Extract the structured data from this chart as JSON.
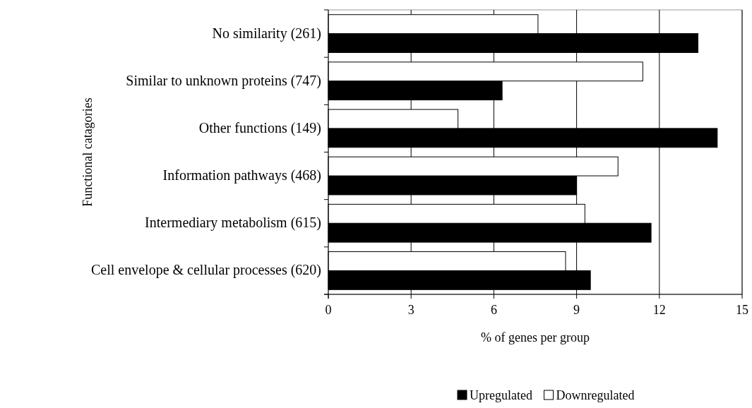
{
  "chart_data": {
    "type": "bar",
    "orientation": "horizontal",
    "xlabel": "% of genes per group",
    "ylabel": "Functional catagories",
    "categories": [
      "No similarity (261)",
      "Similar to unknown proteins (747)",
      "Other functions (149)",
      "Information pathways (468)",
      "Intermediary metabolism (615)",
      "Cell envelope & cellular processes (620)"
    ],
    "series": [
      {
        "name": "Upregulated",
        "color": "#000000",
        "values": [
          13.4,
          6.3,
          14.1,
          9.0,
          11.7,
          9.5
        ]
      },
      {
        "name": "Downregulated",
        "color": "#ffffff",
        "values": [
          7.6,
          11.4,
          4.7,
          10.5,
          9.3,
          8.6
        ]
      }
    ],
    "xlim": [
      0,
      15
    ],
    "xticks": [
      0,
      3,
      6,
      9,
      12,
      15
    ],
    "grid": "x",
    "legend": "bottom"
  }
}
